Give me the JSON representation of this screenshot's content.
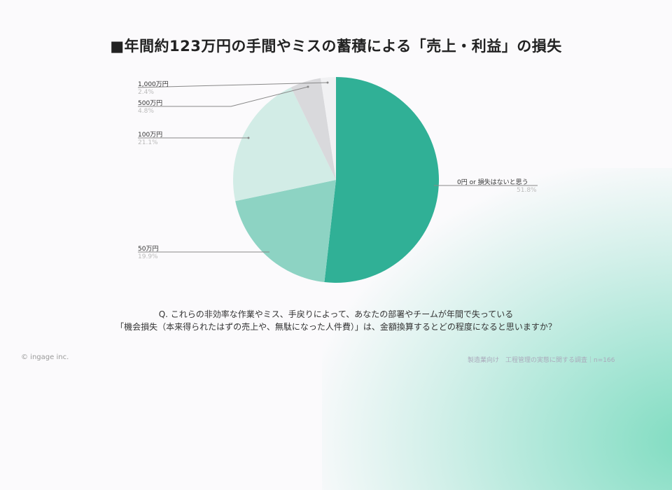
{
  "title": "■年間約123万円の手間やミスの蓄積による「売上・利益」の損失",
  "question": {
    "line1": "Q. これらの非効率な作業やミス、手戻りによって、あなたの部署やチームが年間で失っている",
    "line2": "「機会損失（本来得られたはずの売上や、無駄になった人件費）」は、金額換算するとどの程度になると思いますか？"
  },
  "footer": {
    "copyright": "© ingage inc.",
    "source": "製造業向け　工程管理の実態に関する調査｜n=166"
  },
  "chart_data": {
    "type": "pie",
    "title": "■年間約123万円の手間やミスの蓄積による「売上・利益」の損失",
    "categories": [
      "0円 or 損失はないと思う",
      "50万円",
      "100万円",
      "500万円",
      "1,000万円"
    ],
    "values": [
      51.8,
      19.9,
      21.1,
      4.8,
      2.4
    ],
    "colors": [
      "#30b096",
      "#8dd3c3",
      "#d2ece6",
      "#d9d9dc",
      "#f1f1f3"
    ],
    "labels": [
      {
        "name": "0円 or 損失はないと思う",
        "pct": "51.8%"
      },
      {
        "name": "50万円",
        "pct": "19.9%"
      },
      {
        "name": "100万円",
        "pct": "21.1%"
      },
      {
        "name": "500万円",
        "pct": "4.8%"
      },
      {
        "name": "1,000万円",
        "pct": "2.4%"
      }
    ]
  }
}
